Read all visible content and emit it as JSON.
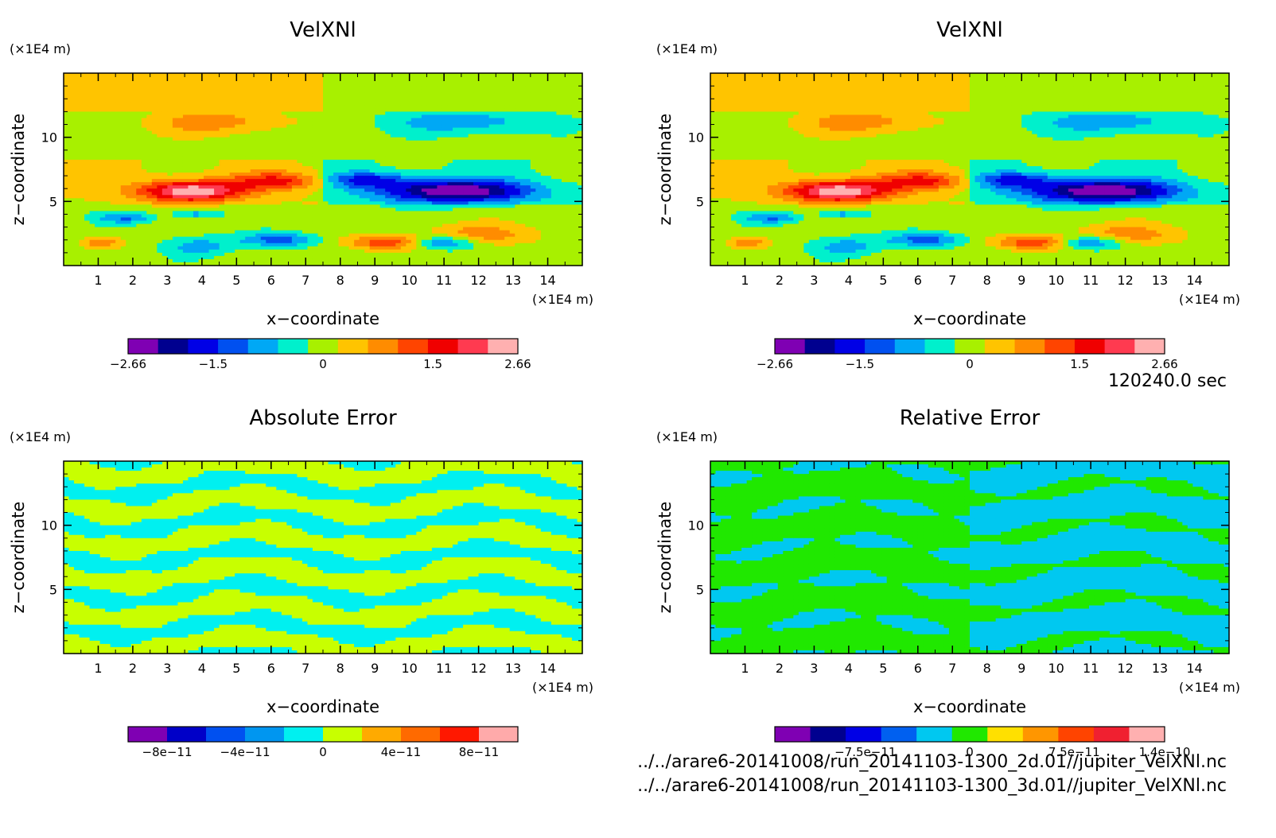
{
  "time_label": "120240.0 sec",
  "files": [
    "../../arare6-20141008/run_20141103-1300_2d.01//jupiter_VelXNl.nc",
    "../../arare6-20141008/run_20141103-1300_3d.01//jupiter_VelXNl.nc"
  ],
  "chart_data": [
    {
      "id": "top-left",
      "type": "heatmap",
      "title": "VelXNl",
      "xlabel": "x−coordinate",
      "ylabel": "z−coordinate",
      "x_unit": "(×1E4 m)",
      "y_unit": "(×1E4 m)",
      "xlim": [
        0,
        15
      ],
      "ylim": [
        0,
        15
      ],
      "xticks": [
        "1",
        "2",
        "3",
        "4",
        "5",
        "6",
        "7",
        "8",
        "9",
        "10",
        "11",
        "12",
        "13",
        "14"
      ],
      "yticks": [
        "5",
        "10"
      ],
      "variant": "vel",
      "colorbar": {
        "colors": [
          "#7f00b3",
          "#00008f",
          "#0000e6",
          "#0050f0",
          "#00a8f5",
          "#00f0cc",
          "#a8f000",
          "#ffc400",
          "#ff8c00",
          "#ff4400",
          "#f00000",
          "#ff3a50",
          "#ffb0b0"
        ],
        "labels": [
          "−2.66",
          "−1.5",
          "0",
          "1.5",
          "2.66"
        ],
        "label_values": [
          -2.66,
          -1.5,
          0,
          1.5,
          2.66
        ],
        "range": [
          -2.66,
          2.66
        ]
      }
    },
    {
      "id": "top-right",
      "type": "heatmap",
      "title": "VelXNl",
      "xlabel": "x−coordinate",
      "ylabel": "z−coordinate",
      "x_unit": "(×1E4 m)",
      "y_unit": "(×1E4 m)",
      "xlim": [
        0,
        15
      ],
      "ylim": [
        0,
        15
      ],
      "xticks": [
        "1",
        "2",
        "3",
        "4",
        "5",
        "6",
        "7",
        "8",
        "9",
        "10",
        "11",
        "12",
        "13",
        "14"
      ],
      "yticks": [
        "5",
        "10"
      ],
      "variant": "vel",
      "colorbar": {
        "colors": [
          "#7f00b3",
          "#00008f",
          "#0000e6",
          "#0050f0",
          "#00a8f5",
          "#00f0cc",
          "#a8f000",
          "#ffc400",
          "#ff8c00",
          "#ff4400",
          "#f00000",
          "#ff3a50",
          "#ffb0b0"
        ],
        "labels": [
          "−2.66",
          "−1.5",
          "0",
          "1.5",
          "2.66"
        ],
        "label_values": [
          -2.66,
          -1.5,
          0,
          1.5,
          2.66
        ],
        "range": [
          -2.66,
          2.66
        ]
      }
    },
    {
      "id": "bottom-left",
      "type": "heatmap",
      "title": "Absolute Error",
      "xlabel": "x−coordinate",
      "ylabel": "z−coordinate",
      "x_unit": "(×1E4 m)",
      "y_unit": "(×1E4 m)",
      "xlim": [
        0,
        15
      ],
      "ylim": [
        0,
        15
      ],
      "xticks": [
        "1",
        "2",
        "3",
        "4",
        "5",
        "6",
        "7",
        "8",
        "9",
        "10",
        "11",
        "12",
        "13",
        "14"
      ],
      "yticks": [
        "5",
        "10"
      ],
      "variant": "abs",
      "colorbar": {
        "colors": [
          "#7f00b3",
          "#0000c8",
          "#0050f0",
          "#0096f0",
          "#00f0f0",
          "#c8ff00",
          "#ffaa00",
          "#ff6a00",
          "#ff1800",
          "#ffaaaa"
        ],
        "labels": [
          "−8e−11",
          "−4e−11",
          "0",
          "4e−11",
          "8e−11"
        ],
        "label_values": [
          -8e-11,
          -4e-11,
          0,
          4e-11,
          8e-11
        ],
        "range": [
          -1e-10,
          1e-10
        ]
      }
    },
    {
      "id": "bottom-right",
      "type": "heatmap",
      "title": "Relative Error",
      "xlabel": "x−coordinate",
      "ylabel": "z−coordinate",
      "x_unit": "(×1E4 m)",
      "y_unit": "(×1E4 m)",
      "xlim": [
        0,
        15
      ],
      "ylim": [
        0,
        15
      ],
      "xticks": [
        "1",
        "2",
        "3",
        "4",
        "5",
        "6",
        "7",
        "8",
        "9",
        "10",
        "11",
        "12",
        "13",
        "14"
      ],
      "yticks": [
        "5",
        "10"
      ],
      "variant": "rel",
      "colorbar": {
        "colors": [
          "#7f00b3",
          "#00008f",
          "#0000e6",
          "#0060f0",
          "#00c8f0",
          "#20e800",
          "#ffe000",
          "#ff9600",
          "#ff4400",
          "#f02030",
          "#ffb0b0"
        ],
        "labels": [
          "−7.5e−11",
          "0",
          "7.5e−11",
          "1.4e−10"
        ],
        "label_values": [
          -7.5e-11,
          0,
          7.5e-11,
          1.4e-10
        ],
        "range": [
          -1.4e-10,
          1.4e-10
        ]
      }
    }
  ]
}
